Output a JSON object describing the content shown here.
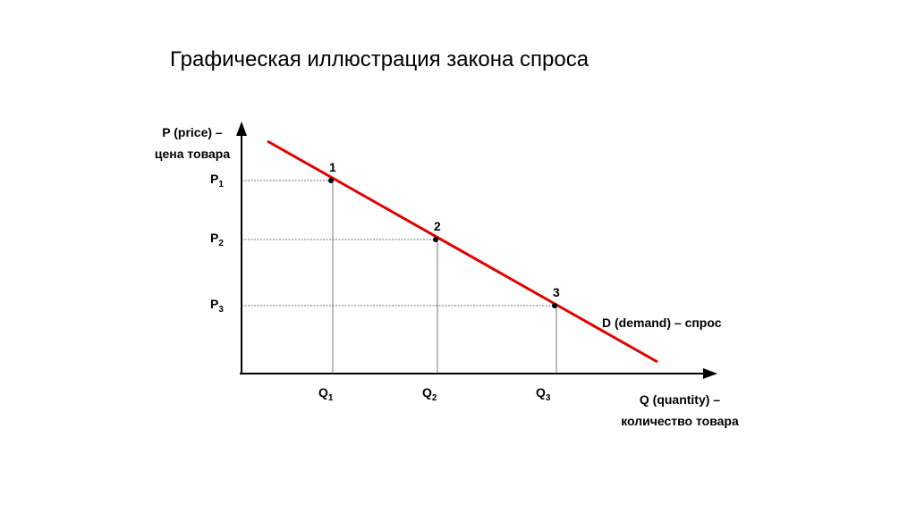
{
  "title": "Графическая иллюстрация закона спроса",
  "axes": {
    "y_label": [
      "P (price) –",
      "цена товара"
    ],
    "x_label": [
      "Q (quantity) –",
      "количество товара"
    ]
  },
  "points": [
    {
      "label": "1",
      "price": {
        "main": "P",
        "sub": "1"
      },
      "quantity": {
        "main": "Q",
        "sub": "1"
      }
    },
    {
      "label": "2",
      "price": {
        "main": "P",
        "sub": "2"
      },
      "quantity": {
        "main": "Q",
        "sub": "2"
      }
    },
    {
      "label": "3",
      "price": {
        "main": "P",
        "sub": "3"
      },
      "quantity": {
        "main": "Q",
        "sub": "3"
      }
    }
  ],
  "curve_label": "D (demand) – спрос"
}
